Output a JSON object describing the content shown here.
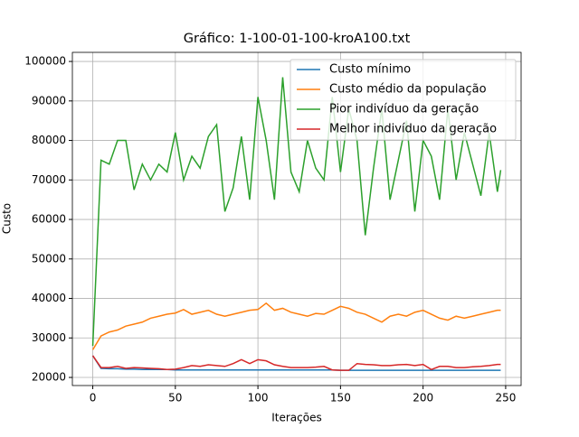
{
  "chart_data": {
    "type": "line",
    "title": "Gráfico: 1-100-01-100-kroA100.txt",
    "xlabel": "Iterações",
    "ylabel": "Custo",
    "x": [
      0,
      5,
      10,
      15,
      20,
      25,
      30,
      35,
      40,
      45,
      50,
      55,
      60,
      65,
      70,
      75,
      80,
      85,
      90,
      95,
      100,
      105,
      110,
      115,
      120,
      125,
      130,
      135,
      140,
      145,
      150,
      155,
      160,
      165,
      170,
      175,
      180,
      185,
      190,
      195,
      200,
      205,
      210,
      215,
      220,
      225,
      230,
      235,
      240,
      245,
      247
    ],
    "series": [
      {
        "name": "Custo mínimo",
        "color": "#1f77b4",
        "values": [
          25500,
          22300,
          22200,
          22200,
          22100,
          22100,
          22000,
          22000,
          22000,
          22000,
          21900,
          21900,
          21900,
          21900,
          21900,
          21900,
          21900,
          21900,
          21900,
          21900,
          21900,
          21900,
          21900,
          21900,
          21900,
          21900,
          21900,
          21900,
          21900,
          21900,
          21800,
          21800,
          21800,
          21800,
          21800,
          21800,
          21800,
          21800,
          21800,
          21800,
          21800,
          21800,
          21800,
          21800,
          21800,
          21800,
          21800,
          21800,
          21800,
          21800,
          21800
        ]
      },
      {
        "name": "Custo médio da população",
        "color": "#ff7f0e",
        "values": [
          27000,
          30500,
          31500,
          32000,
          33000,
          33500,
          34000,
          35000,
          35500,
          36000,
          36300,
          37200,
          36000,
          36500,
          37000,
          36000,
          35500,
          36000,
          36500,
          37000,
          37200,
          38800,
          37000,
          37500,
          36500,
          36000,
          35500,
          36200,
          36000,
          37000,
          38000,
          37500,
          36500,
          36000,
          35000,
          34000,
          35500,
          36000,
          35500,
          36500,
          37000,
          36000,
          35000,
          34500,
          35500,
          35000,
          35500,
          36000,
          36500,
          37000,
          37000
        ]
      },
      {
        "name": "Pior indivíduo da geração",
        "color": "#2ca02c",
        "values": [
          28000,
          75000,
          74000,
          80000,
          80000,
          67500,
          74000,
          70000,
          74000,
          72000,
          82000,
          70000,
          76000,
          73000,
          81000,
          84000,
          62000,
          68000,
          81000,
          65000,
          91000,
          80000,
          65000,
          96000,
          72000,
          67000,
          80000,
          73000,
          70000,
          91000,
          72000,
          88000,
          80000,
          56000,
          73000,
          88000,
          65000,
          75000,
          85000,
          62000,
          80000,
          76000,
          65000,
          88000,
          70000,
          82000,
          74000,
          66000,
          82000,
          67000,
          72500
        ]
      },
      {
        "name": "Melhor indivíduo da geração",
        "color": "#d62728",
        "values": [
          25500,
          22500,
          22500,
          22800,
          22300,
          22500,
          22400,
          22300,
          22200,
          22000,
          22100,
          22500,
          23000,
          22800,
          23200,
          23000,
          22800,
          23500,
          24500,
          23500,
          24500,
          24200,
          23200,
          22800,
          22500,
          22500,
          22500,
          22600,
          22800,
          21900,
          21800,
          21800,
          23500,
          23300,
          23200,
          23000,
          23000,
          23200,
          23300,
          23000,
          23300,
          22000,
          22800,
          22800,
          22500,
          22500,
          22700,
          22800,
          23000,
          23300,
          23300
        ]
      }
    ],
    "xlim": [
      -12.35,
      259.35
    ],
    "ylim": [
      17950,
      102300
    ],
    "xticks": [
      0,
      50,
      100,
      150,
      200,
      250
    ],
    "yticks": [
      20000,
      30000,
      40000,
      50000,
      60000,
      70000,
      80000,
      90000,
      100000
    ],
    "grid": true,
    "legend": "upper right"
  }
}
